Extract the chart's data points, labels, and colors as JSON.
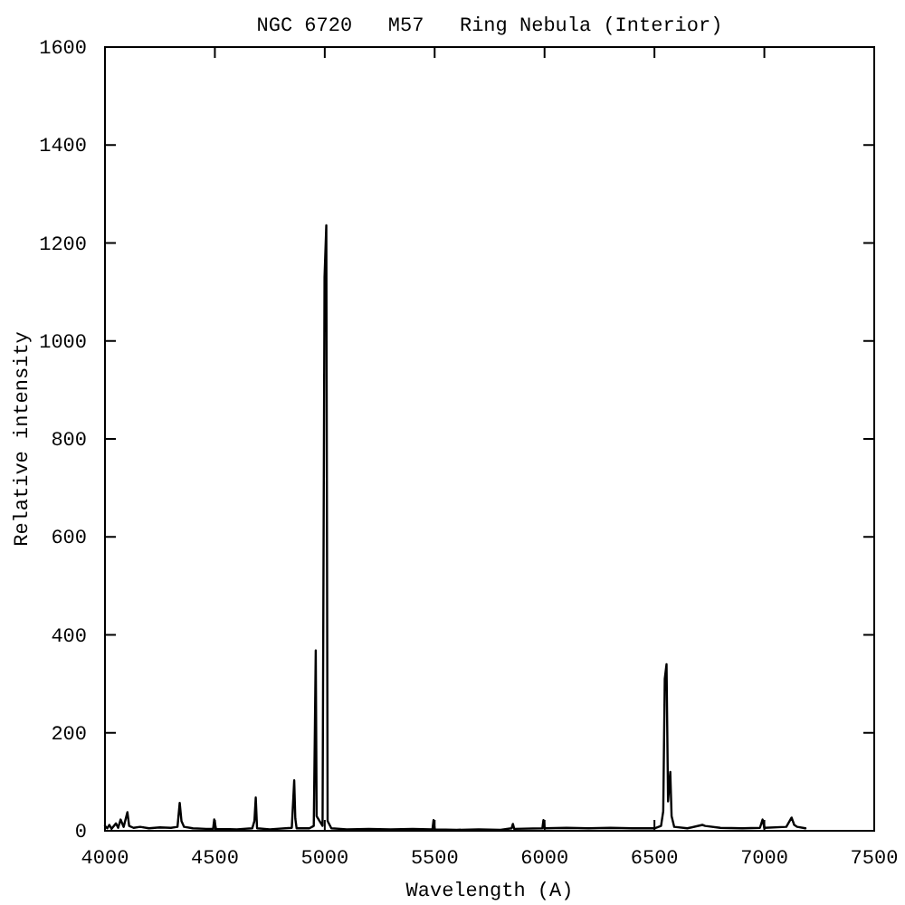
{
  "chart_data": {
    "type": "line",
    "title": "NGC 6720   M57   Ring Nebula (Interior)",
    "xlabel": "Wavelength (A)",
    "ylabel": "Relative intensity",
    "xlim": [
      4000,
      7500
    ],
    "xticks": [
      4000,
      4500,
      5000,
      5500,
      6000,
      6500,
      7000,
      7500
    ],
    "ylim": [
      0,
      1600
    ],
    "yticks": [
      0,
      200,
      400,
      600,
      800,
      1000,
      1200,
      1400,
      1600
    ],
    "series": [
      {
        "color": "#000000",
        "x": [
          4000,
          4010,
          4020,
          4030,
          4050,
          4060,
          4071,
          4085,
          4102,
          4110,
          4130,
          4160,
          4200,
          4250,
          4300,
          4330,
          4340,
          4348,
          4360,
          4400,
          4460,
          4492,
          4497,
          4505,
          4600,
          4670,
          4680,
          4686,
          4692,
          4750,
          4850,
          4861,
          4866,
          4872,
          4930,
          4950,
          4955,
          4959,
          4963,
          4990,
          4999,
          5007,
          5013,
          5030,
          5100,
          5200,
          5300,
          5400,
          5490,
          5495,
          5500,
          5600,
          5700,
          5800,
          5850,
          5856,
          5862,
          5990,
          5995,
          6000,
          6100,
          6200,
          6300,
          6400,
          6500,
          6530,
          6540,
          6547,
          6555,
          6562,
          6572,
          6578,
          6590,
          6650,
          6718,
          6731,
          6800,
          6900,
          6980,
          6992,
          7000,
          7100,
          7124,
          7136,
          7150,
          7187
        ],
        "values": [
          10,
          5,
          12,
          4,
          15,
          6,
          23,
          8,
          38,
          10,
          6,
          8,
          5,
          7,
          6,
          8,
          57,
          20,
          8,
          5,
          4,
          4,
          23,
          4,
          3,
          5,
          20,
          68,
          5,
          3,
          6,
          103,
          25,
          5,
          5,
          10,
          205,
          368,
          30,
          10,
          1130,
          1236,
          20,
          5,
          3,
          4,
          3,
          4,
          3,
          22,
          3,
          2,
          3,
          2,
          5,
          14,
          4,
          5,
          22,
          5,
          6,
          5,
          6,
          5,
          5,
          10,
          40,
          310,
          340,
          60,
          120,
          30,
          8,
          5,
          12,
          10,
          6,
          5,
          6,
          23,
          6,
          8,
          27,
          12,
          8,
          5
        ]
      }
    ]
  }
}
